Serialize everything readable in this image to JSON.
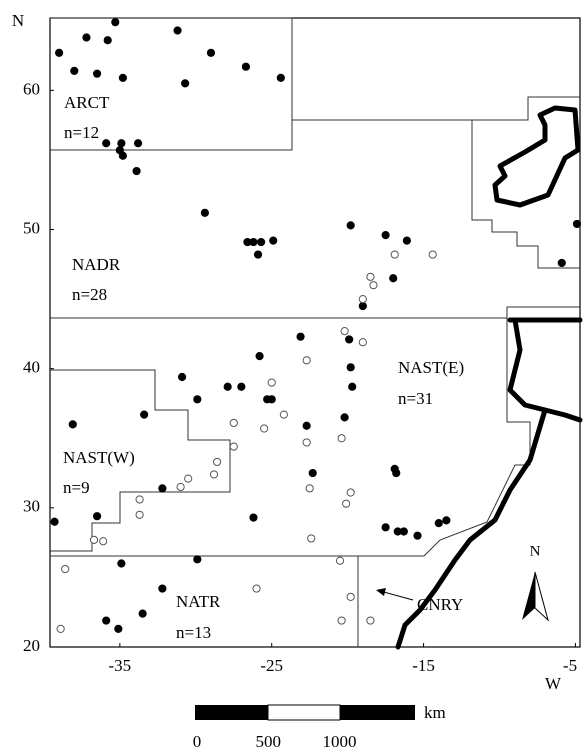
{
  "map": {
    "axis_labels": {
      "y": "N",
      "x": "W"
    },
    "xlim": [
      -39.6,
      -4.7
    ],
    "ylim": [
      20,
      65.2
    ],
    "xticks": [
      -35,
      -25,
      -15,
      -5
    ],
    "yticks": [
      20,
      30,
      40,
      50,
      60
    ],
    "regions": [
      {
        "name": "ARCT",
        "count": "n=12"
      },
      {
        "name": "NADR",
        "count": "n=28"
      },
      {
        "name": "NAST(E)",
        "count": "n=31"
      },
      {
        "name": "NAST(W)",
        "count": "n=9"
      },
      {
        "name": "NATR",
        "count": "n=13"
      },
      {
        "name": "CNRY"
      }
    ],
    "compass": "N",
    "scale_bar": {
      "unit": "km",
      "ticks": [
        0,
        500,
        1000
      ]
    },
    "stations": {
      "filled": {
        "lon": [
          -39.0,
          -38.0,
          -37.2,
          -36.5,
          -35.8,
          -35.3,
          -34.8,
          -31.2,
          -30.7,
          -29.0,
          -26.7,
          -24.4,
          -35.9,
          -34.9,
          -33.8,
          -35.0,
          -34.8,
          -33.9,
          -29.4,
          -26.6,
          -26.2,
          -25.7,
          -24.9,
          -25.9,
          -19.8,
          -17.5,
          -16.1,
          -17.0,
          -19.0,
          -5.9,
          -4.9,
          -23.1,
          -25.8,
          -30.9,
          -29.9,
          -27.0,
          -25.3,
          -25.0,
          -19.9,
          -19.8,
          -19.7,
          -20.2,
          -22.7,
          -22.3,
          -27.9,
          -38.1,
          -33.4,
          -32.2,
          -36.5,
          -39.3,
          -26.2,
          -16.9,
          -16.8,
          -17.5,
          -16.7,
          -16.3,
          -15.4,
          -14.0,
          -13.5,
          -29.9,
          -34.9,
          -32.2,
          -33.5,
          -35.9,
          -35.1
        ],
        "lat": [
          62.7,
          61.4,
          63.8,
          61.2,
          63.6,
          64.9,
          60.9,
          64.3,
          60.5,
          62.7,
          61.7,
          60.9,
          56.2,
          56.2,
          56.2,
          55.7,
          55.3,
          54.2,
          51.2,
          49.1,
          49.1,
          49.1,
          49.2,
          48.2,
          50.3,
          49.6,
          49.2,
          46.5,
          44.5,
          47.6,
          50.4,
          42.3,
          40.9,
          39.4,
          37.8,
          38.7,
          37.8,
          37.8,
          42.1,
          40.1,
          38.7,
          36.5,
          35.9,
          32.5,
          38.7,
          36.0,
          36.7,
          31.4,
          29.4,
          29.0,
          29.3,
          32.8,
          32.5,
          28.6,
          28.3,
          28.3,
          28.0,
          28.9,
          29.1,
          26.3,
          26.0,
          24.2,
          22.4,
          21.9,
          21.3
        ]
      },
      "open": {
        "lon": [
          -14.4,
          -16.9,
          -18.5,
          -18.3,
          -19.0,
          -20.2,
          -19.0,
          -22.7,
          -25.0,
          -24.2,
          -25.5,
          -22.7,
          -27.5,
          -27.5,
          -20.4,
          -19.8,
          -20.1,
          -22.5,
          -28.6,
          -28.8,
          -30.5,
          -31.0,
          -33.7,
          -33.7,
          -36.7,
          -36.1,
          -22.4,
          -38.6,
          -26.0,
          -19.8,
          -20.4,
          -18.5,
          -38.9,
          -20.5
        ],
        "lat": [
          48.2,
          48.2,
          46.6,
          46.0,
          45.0,
          42.7,
          41.9,
          40.6,
          39.0,
          36.7,
          35.7,
          34.7,
          36.1,
          34.4,
          35.0,
          31.1,
          30.3,
          31.4,
          33.3,
          32.4,
          32.1,
          31.5,
          30.6,
          29.5,
          27.7,
          27.6,
          27.8,
          25.6,
          24.2,
          23.6,
          21.9,
          21.9,
          21.3,
          26.2
        ]
      }
    }
  }
}
